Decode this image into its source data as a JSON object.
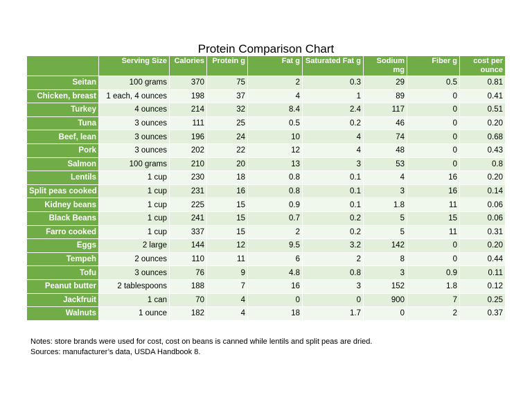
{
  "title": "Protein Comparison Chart",
  "table": {
    "header": [
      "",
      "Serving Size",
      "Calories",
      "Protein g",
      "Fat g",
      "Saturated Fat g",
      "Sodium mg",
      "Fiber g",
      "cost per ounce"
    ],
    "rows": [
      [
        "Seitan",
        "100 grams",
        "370",
        "75",
        "2",
        "0.3",
        "29",
        "0.5",
        "0.81"
      ],
      [
        "Chicken, breast",
        "1 each, 4 ounces",
        "198",
        "37",
        "4",
        "1",
        "89",
        "0",
        "0.41"
      ],
      [
        "Turkey",
        "4 ounces",
        "214",
        "32",
        "8.4",
        "2.4",
        "117",
        "0",
        "0.51"
      ],
      [
        "Tuna",
        "3 ounces",
        "111",
        "25",
        "0.5",
        "0.2",
        "46",
        "0",
        "0.20"
      ],
      [
        "Beef, lean",
        "3 ounces",
        "196",
        "24",
        "10",
        "4",
        "74",
        "0",
        "0.68"
      ],
      [
        "Pork",
        "3 ounces",
        "202",
        "22",
        "12",
        "4",
        "48",
        "0",
        "0.43"
      ],
      [
        "Salmon",
        "100 grams",
        "210",
        "20",
        "13",
        "3",
        "53",
        "0",
        "0.8"
      ],
      [
        "Lentils",
        "1 cup",
        "230",
        "18",
        "0.8",
        "0.1",
        "4",
        "16",
        "0.20"
      ],
      [
        "Split peas cooked",
        "1 cup",
        "231",
        "16",
        "0.8",
        "0.1",
        "3",
        "16",
        "0.14"
      ],
      [
        "Kidney beans",
        "1 cup",
        "225",
        "15",
        "0.9",
        "0.1",
        "1.8",
        "11",
        "0.06"
      ],
      [
        "Black Beans",
        "1 cup",
        "241",
        "15",
        "0.7",
        "0.2",
        "5",
        "15",
        "0.06"
      ],
      [
        "Farro cooked",
        "1 cup",
        "337",
        "15",
        "2",
        "0.2",
        "5",
        "11",
        "0.31"
      ],
      [
        "Eggs",
        "2 large",
        "144",
        "12",
        "9.5",
        "3.2",
        "142",
        "0",
        "0.20"
      ],
      [
        "Tempeh",
        "2 ounces",
        "110",
        "11",
        "6",
        "2",
        "8",
        "0",
        "0.44"
      ],
      [
        "Tofu",
        "3 ounces",
        "76",
        "9",
        "4.8",
        "0.8",
        "3",
        "0.9",
        "0.11"
      ],
      [
        "Peanut butter",
        "2 tablespoons",
        "188",
        "7",
        "16",
        "3",
        "152",
        "1.8",
        "0.12"
      ],
      [
        "Jackfruit",
        "1 can",
        "70",
        "4",
        "0",
        "0",
        "900",
        "7",
        "0.25"
      ],
      [
        "Walnuts",
        "1 ounce",
        "182",
        "4",
        "18",
        "1.7",
        "0",
        "2",
        "0.37"
      ]
    ]
  },
  "notes": [
    "Notes: store brands were used for cost, cost on beans is canned while lentils and split peas are dried.",
    "Sources: manufacturer’s data, USDA Handbook 8."
  ]
}
